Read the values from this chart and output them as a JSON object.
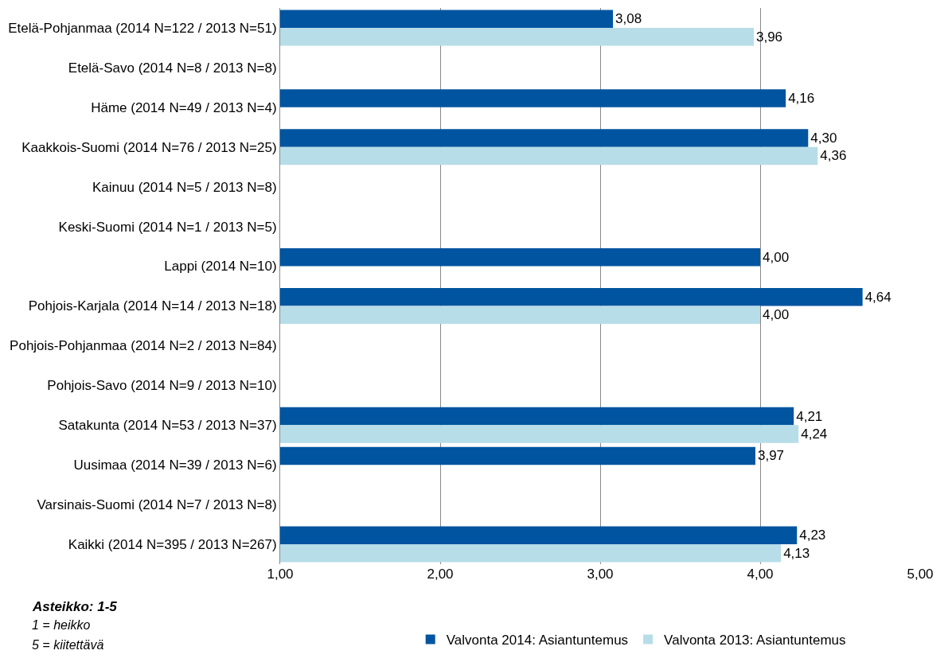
{
  "chart_data": {
    "type": "bar",
    "orientation": "horizontal",
    "categories": [
      "Etelä-Pohjanmaa (2014 N=122 / 2013 N=51)",
      "Etelä-Savo (2014 N=8 / 2013 N=8)",
      "Häme (2014 N=49 / 2013 N=4)",
      "Kaakkois-Suomi (2014 N=76 / 2013 N=25)",
      "Kainuu (2014 N=5 / 2013 N=8)",
      "Keski-Suomi (2014 N=1 / 2013 N=5)",
      "Lappi (2014 N=10)",
      "Pohjois-Karjala (2014 N=14 / 2013 N=18)",
      "Pohjois-Pohjanmaa (2014 N=2 / 2013 N=84)",
      "Pohjois-Savo (2014 N=9 / 2013 N=10)",
      "Satakunta (2014 N=53 / 2013 N=37)",
      "Uusimaa (2014 N=39 / 2013 N=6)",
      "Varsinais-Suomi (2014 N=7 / 2013 N=8)",
      "Kaikki (2014 N=395 / 2013 N=267)"
    ],
    "series": [
      {
        "name": "Valvonta 2014: Asiantuntemus",
        "color": "#0054a0",
        "values": [
          3.08,
          null,
          4.16,
          4.3,
          null,
          null,
          4.0,
          4.64,
          null,
          null,
          4.21,
          3.97,
          null,
          4.23
        ],
        "value_labels": [
          "3,08",
          null,
          "4,16",
          "4,30",
          null,
          null,
          "4,00",
          "4,64",
          null,
          null,
          "4,21",
          "3,97",
          null,
          "4,23"
        ]
      },
      {
        "name": "Valvonta 2013: Asiantuntemus",
        "color": "#b7dde8",
        "values": [
          3.96,
          null,
          null,
          4.36,
          null,
          null,
          null,
          4.0,
          null,
          null,
          4.24,
          null,
          null,
          4.13
        ],
        "value_labels": [
          "3,96",
          null,
          null,
          "4,36",
          null,
          null,
          null,
          "4,00",
          null,
          null,
          "4,24",
          null,
          null,
          "4,13"
        ]
      }
    ],
    "xlim": [
      1,
      5
    ],
    "xticks": [
      {
        "value": 1,
        "label": "1,00"
      },
      {
        "value": 2,
        "label": "2,00"
      },
      {
        "value": 3,
        "label": "3,00"
      },
      {
        "value": 4,
        "label": "4,00"
      },
      {
        "value": 5,
        "label": "5,00"
      }
    ],
    "grid": "x",
    "legend": "bottom",
    "annotations": [
      "Asteikko: 1-5",
      "1 = heikko",
      "5 = kiitettävä"
    ]
  }
}
